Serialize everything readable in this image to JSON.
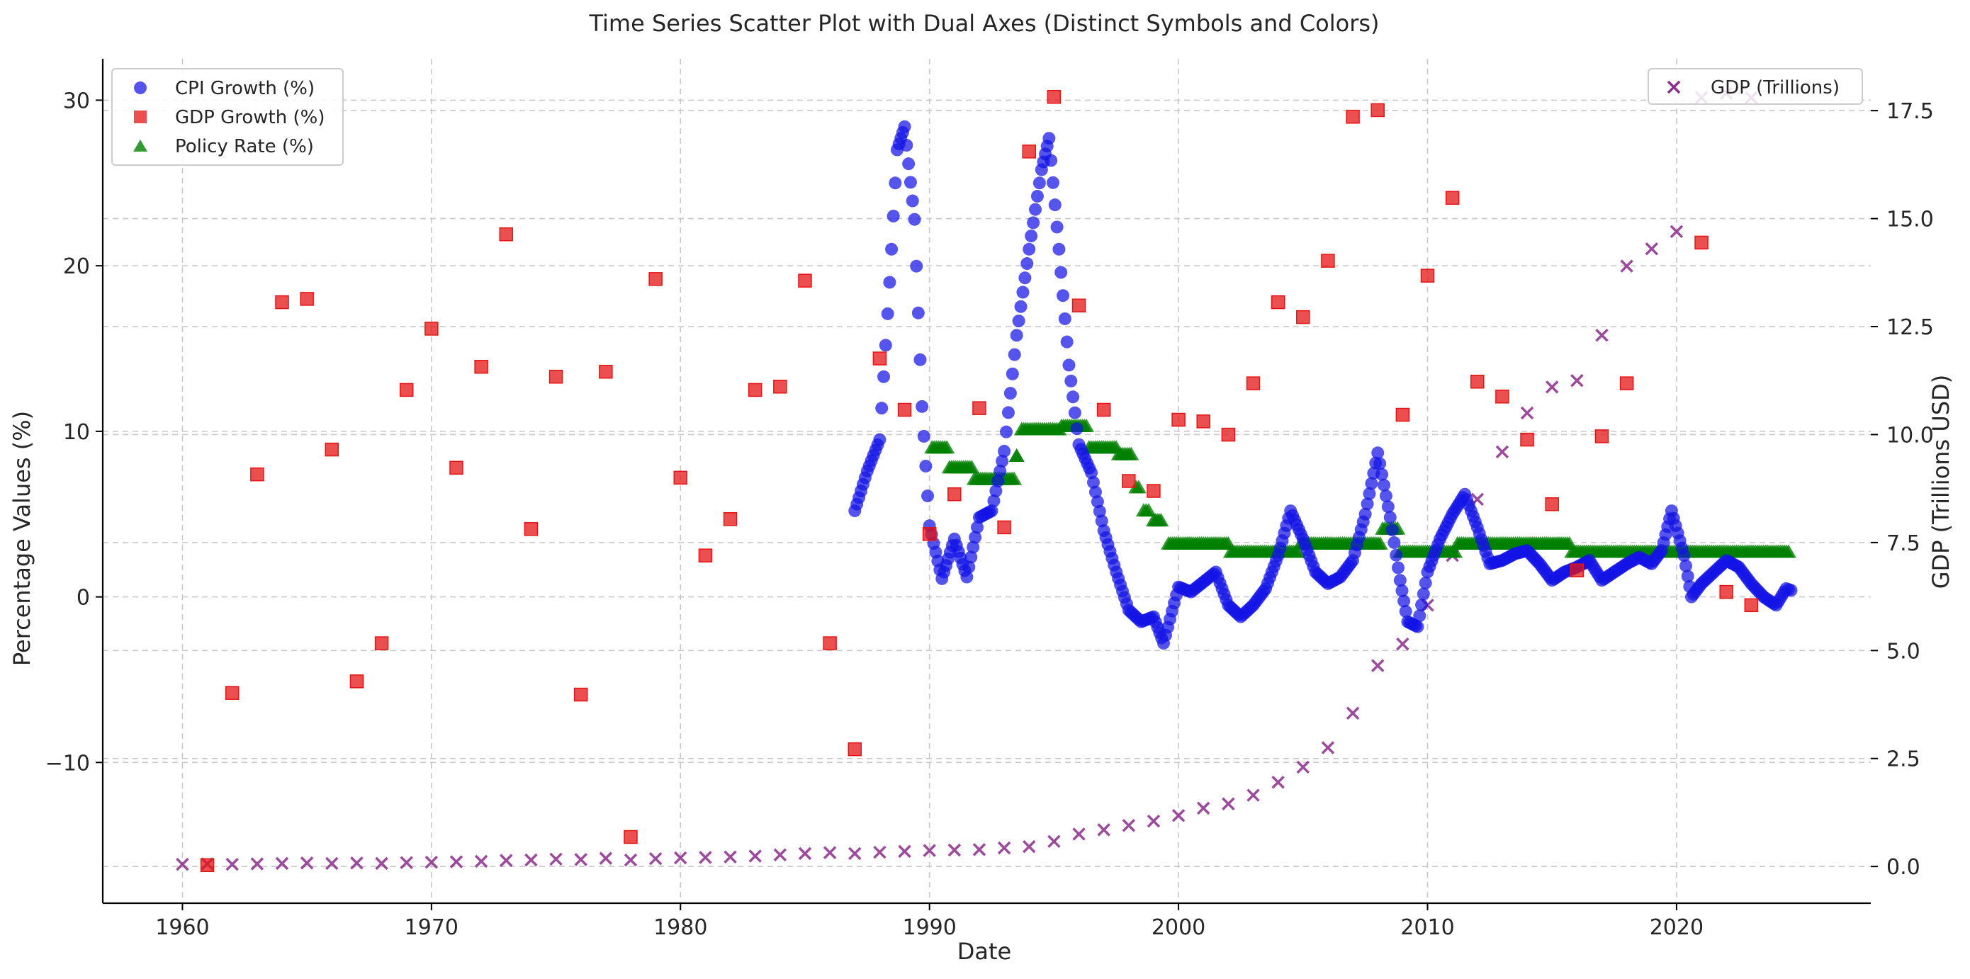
{
  "chart_data": {
    "type": "scatter",
    "title": "Time Series Scatter Plot with Dual Axes (Distinct Symbols and Colors)",
    "xlabel": "Date",
    "ylabel_left": "Percentage Values (%)",
    "ylabel_right": "GDP (Trillions USD)",
    "xlim": [
      1956.8,
      2027.8
    ],
    "ylim_left": [
      -18.5,
      32.5
    ],
    "ylim_right": [
      -0.85,
      18.7
    ],
    "x_ticks": [
      1960,
      1970,
      1980,
      1990,
      2000,
      2010,
      2020
    ],
    "x_tick_labels": [
      "1960",
      "1970",
      "1980",
      "1990",
      "2000",
      "2010",
      "2020"
    ],
    "y_left_ticks": [
      -10,
      0,
      10,
      20,
      30
    ],
    "y_left_tick_labels": [
      "−10",
      "0",
      "10",
      "20",
      "30"
    ],
    "y_right_ticks": [
      0.0,
      2.5,
      5.0,
      7.5,
      10.0,
      12.5,
      15.0,
      17.5
    ],
    "y_right_tick_labels": [
      "0.0",
      "2.5",
      "5.0",
      "7.5",
      "10.0",
      "12.5",
      "15.0",
      "17.5"
    ],
    "grid": true,
    "legend_left_position": "top-left",
    "legend_right_position": "top-right",
    "colors": {
      "cpi": "#1414e6",
      "gdp_growth": "#e61414",
      "policy": "#008000",
      "gdp_trillions": "#8b2b8b"
    },
    "series": [
      {
        "name": "CPI Growth (%)",
        "axis": "left",
        "marker": "circle",
        "anchors": [
          [
            1987.0,
            5.2
          ],
          [
            1987.5,
            7.6
          ],
          [
            1988.0,
            9.5
          ],
          [
            1988.4,
            19.0
          ],
          [
            1988.7,
            27.0
          ],
          [
            1989.0,
            28.4
          ],
          [
            1989.4,
            22.8
          ],
          [
            1989.7,
            11.5
          ],
          [
            1990.0,
            4.3
          ],
          [
            1990.5,
            1.1
          ],
          [
            1991.0,
            3.5
          ],
          [
            1991.5,
            1.2
          ],
          [
            1992.0,
            4.8
          ],
          [
            1992.5,
            5.2
          ],
          [
            1993.0,
            8.8
          ],
          [
            1993.5,
            15.8
          ],
          [
            1994.0,
            21.0
          ],
          [
            1994.5,
            25.8
          ],
          [
            1994.8,
            27.7
          ],
          [
            1995.2,
            21.0
          ],
          [
            1995.6,
            14.0
          ],
          [
            1996.0,
            9.2
          ],
          [
            1996.5,
            7.5
          ],
          [
            1997.0,
            4.0
          ],
          [
            1997.5,
            1.5
          ],
          [
            1998.0,
            -0.8
          ],
          [
            1998.5,
            -1.5
          ],
          [
            1999.0,
            -1.2
          ],
          [
            1999.4,
            -2.8
          ],
          [
            2000.0,
            0.6
          ],
          [
            2000.5,
            0.3
          ],
          [
            2001.0,
            0.9
          ],
          [
            2001.5,
            1.5
          ],
          [
            2002.0,
            -0.5
          ],
          [
            2002.5,
            -1.2
          ],
          [
            2003.0,
            -0.5
          ],
          [
            2003.5,
            0.5
          ],
          [
            2004.0,
            2.5
          ],
          [
            2004.5,
            5.2
          ],
          [
            2005.0,
            3.5
          ],
          [
            2005.5,
            1.5
          ],
          [
            2006.0,
            0.8
          ],
          [
            2006.5,
            1.2
          ],
          [
            2007.0,
            2.2
          ],
          [
            2007.5,
            5.0
          ],
          [
            2008.0,
            8.7
          ],
          [
            2008.5,
            4.8
          ],
          [
            2008.9,
            1.0
          ],
          [
            2009.2,
            -1.5
          ],
          [
            2009.6,
            -1.8
          ],
          [
            2010.0,
            1.5
          ],
          [
            2010.5,
            3.5
          ],
          [
            2011.0,
            5.0
          ],
          [
            2011.5,
            6.2
          ],
          [
            2012.0,
            4.2
          ],
          [
            2012.5,
            2.0
          ],
          [
            2013.0,
            2.2
          ],
          [
            2013.5,
            2.6
          ],
          [
            2014.0,
            2.8
          ],
          [
            2014.5,
            2.0
          ],
          [
            2015.0,
            1.0
          ],
          [
            2015.5,
            1.5
          ],
          [
            2016.0,
            1.8
          ],
          [
            2016.5,
            2.2
          ],
          [
            2017.0,
            1.0
          ],
          [
            2017.5,
            1.5
          ],
          [
            2018.0,
            2.0
          ],
          [
            2018.5,
            2.4
          ],
          [
            2019.0,
            2.0
          ],
          [
            2019.4,
            2.8
          ],
          [
            2019.8,
            5.2
          ],
          [
            2020.3,
            2.5
          ],
          [
            2020.6,
            0.0
          ],
          [
            2021.0,
            0.8
          ],
          [
            2021.5,
            1.5
          ],
          [
            2022.0,
            2.2
          ],
          [
            2022.5,
            1.8
          ],
          [
            2023.0,
            0.8
          ],
          [
            2023.5,
            0.0
          ],
          [
            2024.0,
            -0.5
          ],
          [
            2024.4,
            0.5
          ],
          [
            2024.6,
            0.4
          ]
        ]
      },
      {
        "name": "GDP Growth (%)",
        "axis": "left",
        "marker": "square",
        "x": [
          1961,
          1962,
          1963,
          1964,
          1965,
          1966,
          1967,
          1968,
          1969,
          1970,
          1971,
          1972,
          1973,
          1974,
          1975,
          1976,
          1977,
          1978,
          1979,
          1980,
          1981,
          1982,
          1983,
          1984,
          1985,
          1986,
          1987,
          1988,
          1989,
          1990,
          1991,
          1992,
          1993,
          1994,
          1995,
          1996,
          1997,
          1998,
          1999,
          2000,
          2001,
          2002,
          2003,
          2004,
          2005,
          2006,
          2007,
          2008,
          2009,
          2010,
          2011,
          2012,
          2013,
          2014,
          2015,
          2016,
          2017,
          2018,
          2021,
          2022,
          2023
        ],
        "y": [
          -16.2,
          -5.8,
          7.4,
          17.8,
          18.0,
          8.9,
          -5.1,
          -2.8,
          12.5,
          16.2,
          7.8,
          13.9,
          21.9,
          4.1,
          13.3,
          -5.9,
          13.6,
          -14.5,
          19.2,
          7.2,
          2.5,
          4.7,
          12.5,
          12.7,
          19.1,
          -2.8,
          -9.2,
          14.4,
          11.3,
          3.8,
          6.2,
          11.4,
          4.2,
          26.9,
          30.2,
          17.6,
          11.3,
          7.0,
          6.4,
          10.7,
          10.6,
          9.8,
          12.9,
          17.8,
          16.9,
          20.3,
          29.0,
          29.4,
          11.0,
          19.4,
          24.1,
          13.0,
          12.1,
          9.5,
          5.6,
          1.6,
          9.7,
          12.9,
          21.4,
          0.3,
          -0.5
        ]
      },
      {
        "name": "Policy Rate (%)",
        "axis": "left",
        "marker": "triangle",
        "steps": [
          [
            1990.1,
            1990.7,
            9.0
          ],
          [
            1990.8,
            1991.7,
            7.8
          ],
          [
            1991.8,
            1993.4,
            7.1
          ],
          [
            1993.5,
            1993.5,
            8.5
          ],
          [
            1993.7,
            1995.2,
            10.1
          ],
          [
            1995.3,
            1996.3,
            10.3
          ],
          [
            1996.4,
            1997.5,
            9.0
          ],
          [
            1997.6,
            1998.1,
            8.6
          ],
          [
            1998.3,
            1998.4,
            6.6
          ],
          [
            1998.6,
            1998.8,
            5.2
          ],
          [
            1999.0,
            1999.3,
            4.6
          ],
          [
            1999.6,
            2002.0,
            3.2
          ],
          [
            2002.1,
            2004.8,
            2.7
          ],
          [
            2004.9,
            2008.1,
            3.2
          ],
          [
            2008.2,
            2008.8,
            4.1
          ],
          [
            2008.9,
            2011.1,
            2.7
          ],
          [
            2011.2,
            2015.7,
            3.2
          ],
          [
            2015.8,
            2024.5,
            2.7
          ]
        ]
      },
      {
        "name": "GDP (Trillions)",
        "axis": "right",
        "marker": "x",
        "x": [
          1960,
          1961,
          1962,
          1963,
          1964,
          1965,
          1966,
          1967,
          1968,
          1969,
          1970,
          1971,
          1972,
          1973,
          1974,
          1975,
          1976,
          1977,
          1978,
          1979,
          1980,
          1981,
          1982,
          1983,
          1984,
          1985,
          1986,
          1987,
          1988,
          1989,
          1990,
          1991,
          1992,
          1993,
          1994,
          1995,
          1996,
          1997,
          1998,
          1999,
          2000,
          2001,
          2002,
          2003,
          2004,
          2005,
          2006,
          2007,
          2008,
          2009,
          2010,
          2011,
          2012,
          2013,
          2014,
          2015,
          2016,
          2017,
          2018,
          2019,
          2020,
          2021,
          2022,
          2023
        ],
        "y": [
          0.05,
          0.06,
          0.05,
          0.06,
          0.07,
          0.08,
          0.07,
          0.08,
          0.07,
          0.09,
          0.1,
          0.11,
          0.12,
          0.14,
          0.15,
          0.17,
          0.16,
          0.19,
          0.15,
          0.18,
          0.2,
          0.21,
          0.22,
          0.24,
          0.27,
          0.3,
          0.32,
          0.3,
          0.33,
          0.35,
          0.37,
          0.38,
          0.39,
          0.43,
          0.46,
          0.58,
          0.75,
          0.85,
          0.95,
          1.05,
          1.18,
          1.35,
          1.45,
          1.65,
          1.95,
          2.3,
          2.75,
          3.55,
          4.65,
          5.15,
          6.05,
          7.2,
          8.5,
          9.6,
          10.5,
          11.1,
          11.25,
          12.3,
          13.9,
          14.3,
          14.7,
          17.8,
          17.9,
          17.8
        ]
      }
    ]
  }
}
